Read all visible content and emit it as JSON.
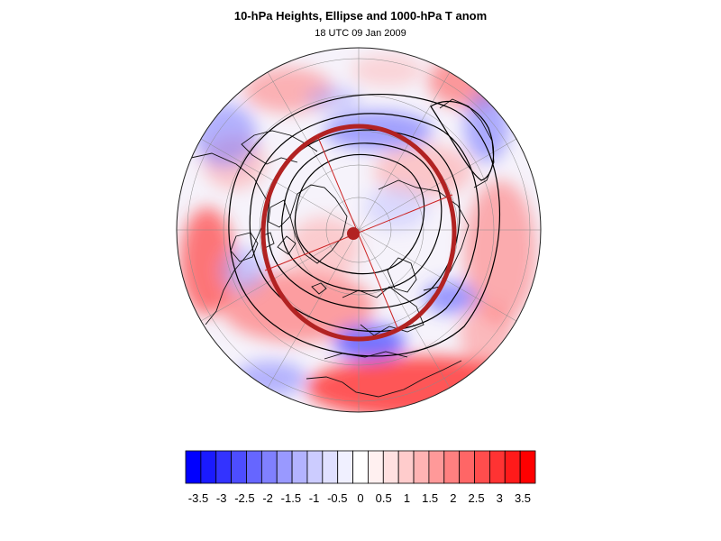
{
  "figure": {
    "title": "10-hPa Heights, Ellipse and 1000-hPa T anom",
    "subtitle": "18 UTC 09 Jan 2009"
  },
  "map": {
    "projection": "north-polar-stereographic",
    "field": "1000-hPa temperature anomaly",
    "overlays": [
      "10-hPa height contours",
      "vortex ellipse",
      "ellipse center"
    ]
  },
  "colorbar": {
    "labels": [
      "-3.5",
      "-3",
      "-2.5",
      "-2",
      "-1.5",
      "-1",
      "-0.5",
      "0",
      "0.5",
      "1",
      "1.5",
      "2",
      "2.5",
      "3",
      "3.5"
    ],
    "colors": [
      "#0000ff",
      "#1a1aff",
      "#3333ff",
      "#4d4dff",
      "#6666ff",
      "#8080ff",
      "#9999ff",
      "#b3b3ff",
      "#ccccff",
      "#e0e0ff",
      "#f0f0ff",
      "#ffffff",
      "#fff0f0",
      "#ffe0e0",
      "#ffcccc",
      "#ffb3b3",
      "#ff9999",
      "#ff8080",
      "#ff6666",
      "#ff4d4d",
      "#ff3333",
      "#ff1a1a",
      "#ff0000"
    ]
  }
}
